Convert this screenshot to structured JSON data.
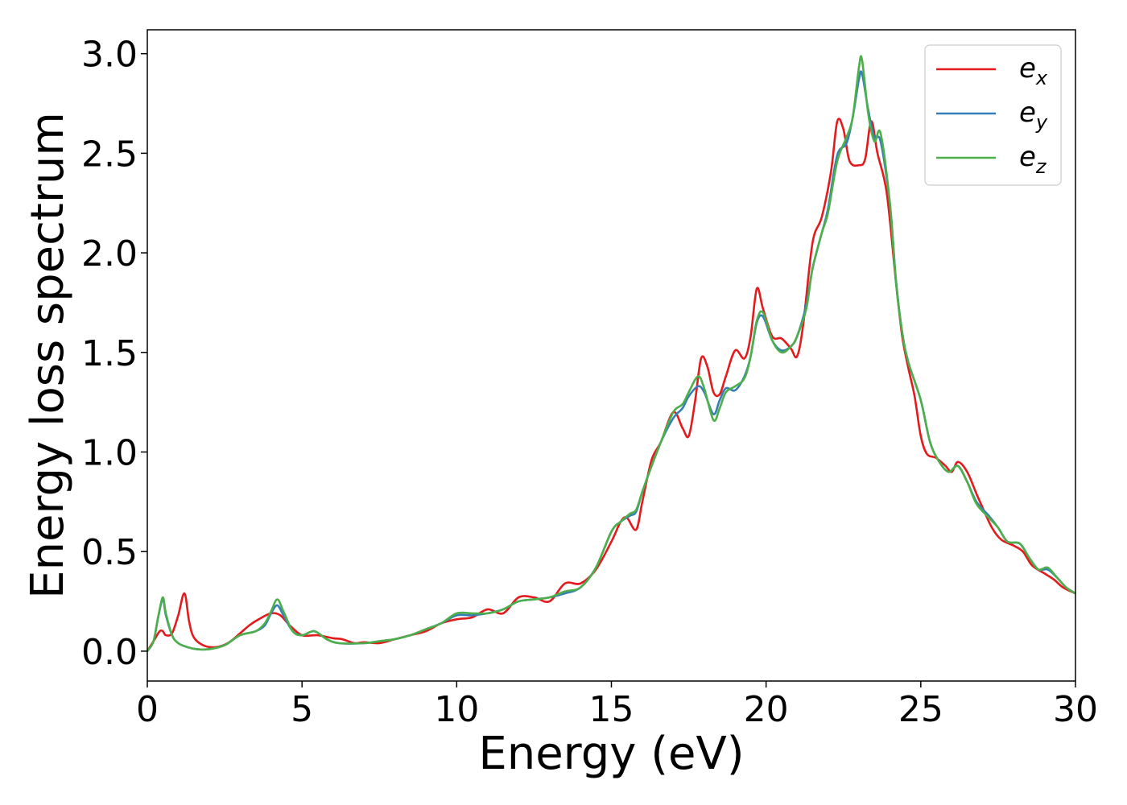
{
  "chart_data": {
    "type": "line",
    "title": "",
    "xlabel": "Energy (eV)",
    "ylabel": "Energy loss spectrum",
    "xlim": [
      0,
      30
    ],
    "ylim": [
      -0.15,
      3.12
    ],
    "xticks": [
      0,
      5,
      10,
      15,
      20,
      25,
      30
    ],
    "xtick_labels": [
      "0",
      "5",
      "10",
      "15",
      "20",
      "25",
      "30"
    ],
    "yticks": [
      0.0,
      0.5,
      1.0,
      1.5,
      2.0,
      2.5,
      3.0
    ],
    "ytick_labels": [
      "0.0",
      "0.5",
      "1.0",
      "1.5",
      "2.0",
      "2.5",
      "3.0"
    ],
    "grid": false,
    "legend_position": "top-right",
    "series": [
      {
        "name": "e",
        "subscript": "x",
        "color": "#e41a1c",
        "points": [
          [
            0,
            0
          ],
          [
            0.2,
            0.05
          ],
          [
            0.4,
            0.1
          ],
          [
            0.5,
            0.1
          ],
          [
            0.6,
            0.08
          ],
          [
            0.8,
            0.09
          ],
          [
            1.0,
            0.18
          ],
          [
            1.2,
            0.29
          ],
          [
            1.35,
            0.15
          ],
          [
            1.5,
            0.07
          ],
          [
            1.8,
            0.03
          ],
          [
            2.2,
            0.02
          ],
          [
            2.6,
            0.04
          ],
          [
            3.0,
            0.09
          ],
          [
            3.3,
            0.13
          ],
          [
            3.6,
            0.16
          ],
          [
            4.0,
            0.19
          ],
          [
            4.3,
            0.18
          ],
          [
            4.6,
            0.13
          ],
          [
            5.0,
            0.08
          ],
          [
            5.5,
            0.08
          ],
          [
            6.0,
            0.065
          ],
          [
            6.3,
            0.06
          ],
          [
            6.7,
            0.04
          ],
          [
            7.0,
            0.045
          ],
          [
            7.5,
            0.04
          ],
          [
            8.0,
            0.06
          ],
          [
            8.5,
            0.08
          ],
          [
            9.0,
            0.1
          ],
          [
            9.5,
            0.14
          ],
          [
            10.0,
            0.16
          ],
          [
            10.5,
            0.17
          ],
          [
            11.0,
            0.21
          ],
          [
            11.5,
            0.19
          ],
          [
            12.0,
            0.27
          ],
          [
            12.5,
            0.27
          ],
          [
            13.0,
            0.25
          ],
          [
            13.5,
            0.34
          ],
          [
            14.0,
            0.34
          ],
          [
            14.5,
            0.41
          ],
          [
            15.0,
            0.55
          ],
          [
            15.3,
            0.65
          ],
          [
            15.5,
            0.67
          ],
          [
            15.8,
            0.61
          ],
          [
            16.0,
            0.75
          ],
          [
            16.3,
            0.96
          ],
          [
            16.6,
            1.05
          ],
          [
            17.0,
            1.2
          ],
          [
            17.3,
            1.12
          ],
          [
            17.5,
            1.08
          ],
          [
            17.7,
            1.25
          ],
          [
            17.9,
            1.47
          ],
          [
            18.1,
            1.43
          ],
          [
            18.3,
            1.3
          ],
          [
            18.5,
            1.29
          ],
          [
            18.7,
            1.38
          ],
          [
            19.0,
            1.51
          ],
          [
            19.3,
            1.47
          ],
          [
            19.5,
            1.58
          ],
          [
            19.7,
            1.82
          ],
          [
            19.9,
            1.72
          ],
          [
            20.2,
            1.58
          ],
          [
            20.5,
            1.57
          ],
          [
            20.8,
            1.52
          ],
          [
            21.0,
            1.48
          ],
          [
            21.2,
            1.64
          ],
          [
            21.5,
            2.05
          ],
          [
            21.8,
            2.18
          ],
          [
            22.1,
            2.41
          ],
          [
            22.3,
            2.66
          ],
          [
            22.5,
            2.62
          ],
          [
            22.7,
            2.46
          ],
          [
            23.0,
            2.44
          ],
          [
            23.2,
            2.47
          ],
          [
            23.4,
            2.66
          ],
          [
            23.6,
            2.5
          ],
          [
            23.9,
            2.3
          ],
          [
            24.2,
            1.85
          ],
          [
            24.4,
            1.58
          ],
          [
            24.6,
            1.42
          ],
          [
            24.8,
            1.28
          ],
          [
            25.0,
            1.08
          ],
          [
            25.2,
            0.99
          ],
          [
            25.5,
            0.97
          ],
          [
            25.8,
            0.93
          ],
          [
            26.0,
            0.9
          ],
          [
            26.2,
            0.95
          ],
          [
            26.5,
            0.9
          ],
          [
            26.8,
            0.79
          ],
          [
            27.0,
            0.72
          ],
          [
            27.3,
            0.62
          ],
          [
            27.6,
            0.56
          ],
          [
            28.0,
            0.53
          ],
          [
            28.3,
            0.5
          ],
          [
            28.6,
            0.43
          ],
          [
            29.0,
            0.39
          ],
          [
            29.3,
            0.36
          ],
          [
            29.6,
            0.32
          ],
          [
            30.0,
            0.29
          ]
        ]
      },
      {
        "name": "e",
        "subscript": "y",
        "color": "#377eb8",
        "points": [
          [
            0,
            0
          ],
          [
            0.2,
            0.05
          ],
          [
            0.35,
            0.17
          ],
          [
            0.5,
            0.26
          ],
          [
            0.6,
            0.18
          ],
          [
            0.8,
            0.08
          ],
          [
            1.0,
            0.04
          ],
          [
            1.3,
            0.02
          ],
          [
            1.6,
            0.01
          ],
          [
            2.0,
            0.01
          ],
          [
            2.5,
            0.03
          ],
          [
            3.0,
            0.08
          ],
          [
            3.5,
            0.1
          ],
          [
            3.8,
            0.13
          ],
          [
            4.0,
            0.19
          ],
          [
            4.2,
            0.23
          ],
          [
            4.4,
            0.18
          ],
          [
            4.7,
            0.1
          ],
          [
            5.0,
            0.08
          ],
          [
            5.4,
            0.1
          ],
          [
            5.8,
            0.06
          ],
          [
            6.2,
            0.04
          ],
          [
            7.0,
            0.04
          ],
          [
            7.5,
            0.05
          ],
          [
            8.0,
            0.06
          ],
          [
            8.5,
            0.08
          ],
          [
            9.0,
            0.11
          ],
          [
            9.5,
            0.14
          ],
          [
            10.0,
            0.18
          ],
          [
            10.5,
            0.18
          ],
          [
            11.0,
            0.19
          ],
          [
            11.5,
            0.21
          ],
          [
            12.0,
            0.25
          ],
          [
            12.5,
            0.26
          ],
          [
            13.0,
            0.27
          ],
          [
            13.5,
            0.29
          ],
          [
            14.0,
            0.32
          ],
          [
            14.5,
            0.42
          ],
          [
            15.0,
            0.6
          ],
          [
            15.3,
            0.65
          ],
          [
            15.6,
            0.68
          ],
          [
            15.8,
            0.7
          ],
          [
            16.0,
            0.8
          ],
          [
            16.3,
            0.93
          ],
          [
            16.6,
            1.05
          ],
          [
            17.0,
            1.17
          ],
          [
            17.3,
            1.22
          ],
          [
            17.5,
            1.28
          ],
          [
            17.8,
            1.33
          ],
          [
            18.0,
            1.3
          ],
          [
            18.3,
            1.19
          ],
          [
            18.5,
            1.26
          ],
          [
            18.7,
            1.32
          ],
          [
            19.0,
            1.31
          ],
          [
            19.3,
            1.38
          ],
          [
            19.5,
            1.48
          ],
          [
            19.7,
            1.65
          ],
          [
            19.9,
            1.68
          ],
          [
            20.2,
            1.56
          ],
          [
            20.5,
            1.51
          ],
          [
            20.8,
            1.53
          ],
          [
            21.0,
            1.58
          ],
          [
            21.3,
            1.74
          ],
          [
            21.5,
            1.92
          ],
          [
            21.8,
            2.1
          ],
          [
            22.0,
            2.22
          ],
          [
            22.3,
            2.49
          ],
          [
            22.6,
            2.55
          ],
          [
            22.8,
            2.68
          ],
          [
            23.0,
            2.87
          ],
          [
            23.1,
            2.9
          ],
          [
            23.3,
            2.72
          ],
          [
            23.5,
            2.58
          ],
          [
            23.7,
            2.56
          ],
          [
            24.0,
            2.25
          ],
          [
            24.2,
            1.86
          ],
          [
            24.4,
            1.6
          ],
          [
            24.6,
            1.45
          ],
          [
            25.0,
            1.26
          ],
          [
            25.3,
            1.05
          ],
          [
            25.6,
            0.95
          ],
          [
            25.9,
            0.9
          ],
          [
            26.2,
            0.93
          ],
          [
            26.5,
            0.85
          ],
          [
            26.8,
            0.75
          ],
          [
            27.2,
            0.68
          ],
          [
            27.5,
            0.62
          ],
          [
            27.8,
            0.55
          ],
          [
            28.2,
            0.54
          ],
          [
            28.5,
            0.47
          ],
          [
            28.8,
            0.41
          ],
          [
            29.1,
            0.41
          ],
          [
            29.4,
            0.37
          ],
          [
            29.7,
            0.32
          ],
          [
            30.0,
            0.29
          ]
        ]
      },
      {
        "name": "e",
        "subscript": "z",
        "color": "#4daf4a",
        "points": [
          [
            0,
            0
          ],
          [
            0.2,
            0.05
          ],
          [
            0.35,
            0.17
          ],
          [
            0.5,
            0.27
          ],
          [
            0.6,
            0.19
          ],
          [
            0.8,
            0.08
          ],
          [
            1.0,
            0.04
          ],
          [
            1.3,
            0.02
          ],
          [
            1.6,
            0.01
          ],
          [
            2.0,
            0.01
          ],
          [
            2.5,
            0.03
          ],
          [
            3.0,
            0.08
          ],
          [
            3.5,
            0.1
          ],
          [
            3.8,
            0.14
          ],
          [
            4.0,
            0.2
          ],
          [
            4.2,
            0.26
          ],
          [
            4.4,
            0.2
          ],
          [
            4.7,
            0.1
          ],
          [
            5.0,
            0.08
          ],
          [
            5.4,
            0.1
          ],
          [
            5.8,
            0.06
          ],
          [
            6.2,
            0.04
          ],
          [
            7.0,
            0.04
          ],
          [
            7.5,
            0.05
          ],
          [
            8.0,
            0.06
          ],
          [
            8.5,
            0.08
          ],
          [
            9.0,
            0.11
          ],
          [
            9.5,
            0.14
          ],
          [
            10.0,
            0.19
          ],
          [
            10.5,
            0.19
          ],
          [
            11.0,
            0.19
          ],
          [
            11.5,
            0.21
          ],
          [
            12.0,
            0.25
          ],
          [
            12.5,
            0.26
          ],
          [
            13.0,
            0.27
          ],
          [
            13.5,
            0.3
          ],
          [
            14.0,
            0.32
          ],
          [
            14.5,
            0.42
          ],
          [
            15.0,
            0.6
          ],
          [
            15.3,
            0.65
          ],
          [
            15.6,
            0.69
          ],
          [
            15.8,
            0.71
          ],
          [
            16.0,
            0.8
          ],
          [
            16.3,
            0.93
          ],
          [
            16.6,
            1.05
          ],
          [
            17.0,
            1.2
          ],
          [
            17.3,
            1.24
          ],
          [
            17.5,
            1.3
          ],
          [
            17.8,
            1.38
          ],
          [
            18.0,
            1.32
          ],
          [
            18.3,
            1.16
          ],
          [
            18.5,
            1.22
          ],
          [
            18.7,
            1.3
          ],
          [
            19.0,
            1.33
          ],
          [
            19.3,
            1.37
          ],
          [
            19.5,
            1.48
          ],
          [
            19.7,
            1.66
          ],
          [
            19.9,
            1.7
          ],
          [
            20.2,
            1.56
          ],
          [
            20.5,
            1.5
          ],
          [
            20.8,
            1.53
          ],
          [
            21.0,
            1.58
          ],
          [
            21.3,
            1.72
          ],
          [
            21.5,
            1.92
          ],
          [
            21.8,
            2.1
          ],
          [
            22.0,
            2.2
          ],
          [
            22.3,
            2.46
          ],
          [
            22.6,
            2.58
          ],
          [
            22.8,
            2.68
          ],
          [
            23.0,
            2.93
          ],
          [
            23.1,
            2.97
          ],
          [
            23.3,
            2.7
          ],
          [
            23.5,
            2.56
          ],
          [
            23.7,
            2.6
          ],
          [
            24.0,
            2.25
          ],
          [
            24.2,
            1.85
          ],
          [
            24.4,
            1.6
          ],
          [
            24.6,
            1.45
          ],
          [
            25.0,
            1.26
          ],
          [
            25.3,
            1.05
          ],
          [
            25.6,
            0.95
          ],
          [
            25.9,
            0.9
          ],
          [
            26.2,
            0.93
          ],
          [
            26.5,
            0.85
          ],
          [
            26.8,
            0.74
          ],
          [
            27.2,
            0.67
          ],
          [
            27.5,
            0.62
          ],
          [
            27.8,
            0.55
          ],
          [
            28.2,
            0.54
          ],
          [
            28.5,
            0.47
          ],
          [
            28.8,
            0.41
          ],
          [
            29.1,
            0.42
          ],
          [
            29.4,
            0.37
          ],
          [
            29.7,
            0.32
          ],
          [
            30.0,
            0.29
          ]
        ]
      }
    ]
  }
}
